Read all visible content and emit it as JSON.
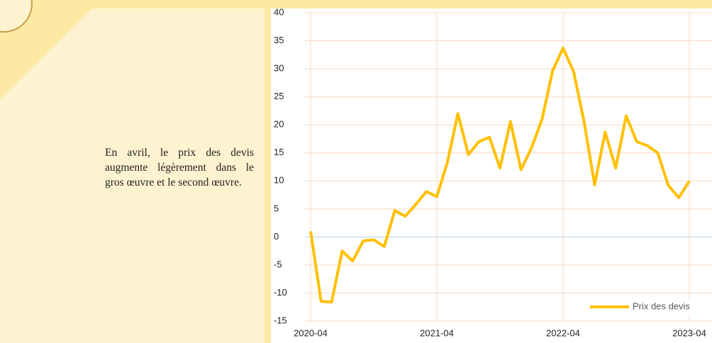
{
  "text": "En avril, le prix des devis augmente légèrement dans le gros œuvre et le second œuvre.",
  "chart_data": {
    "type": "line",
    "categories": [
      "2020-04",
      null,
      null,
      null,
      null,
      null,
      null,
      null,
      null,
      null,
      null,
      null,
      "2021-04",
      null,
      null,
      null,
      null,
      null,
      null,
      null,
      null,
      null,
      null,
      null,
      "2022-04",
      null,
      null,
      null,
      null,
      null,
      null,
      null,
      null,
      null,
      null,
      null,
      "2023-04"
    ],
    "series": [
      {
        "name": "Prix des devis",
        "color": "#ffc000",
        "values": [
          1,
          -11.5,
          -11.6,
          -2.5,
          -4.3,
          -0.7,
          -0.5,
          -1.7,
          4.7,
          3.7,
          5.8,
          8.1,
          7.2,
          13.3,
          22,
          14.7,
          17,
          17.8,
          12.3,
          20.6,
          12,
          15.9,
          21,
          29.6,
          33.7,
          29.5,
          20.5,
          9.3,
          18.7,
          12.3,
          21.6,
          17,
          16.3,
          15,
          9.2,
          7,
          10
        ]
      }
    ],
    "ylim": [
      -15,
      40
    ],
    "yticks": [
      -15,
      -10,
      -5,
      0,
      5,
      10,
      15,
      20,
      25,
      30,
      35,
      40
    ],
    "grid": true,
    "legend": "bottom-right"
  }
}
